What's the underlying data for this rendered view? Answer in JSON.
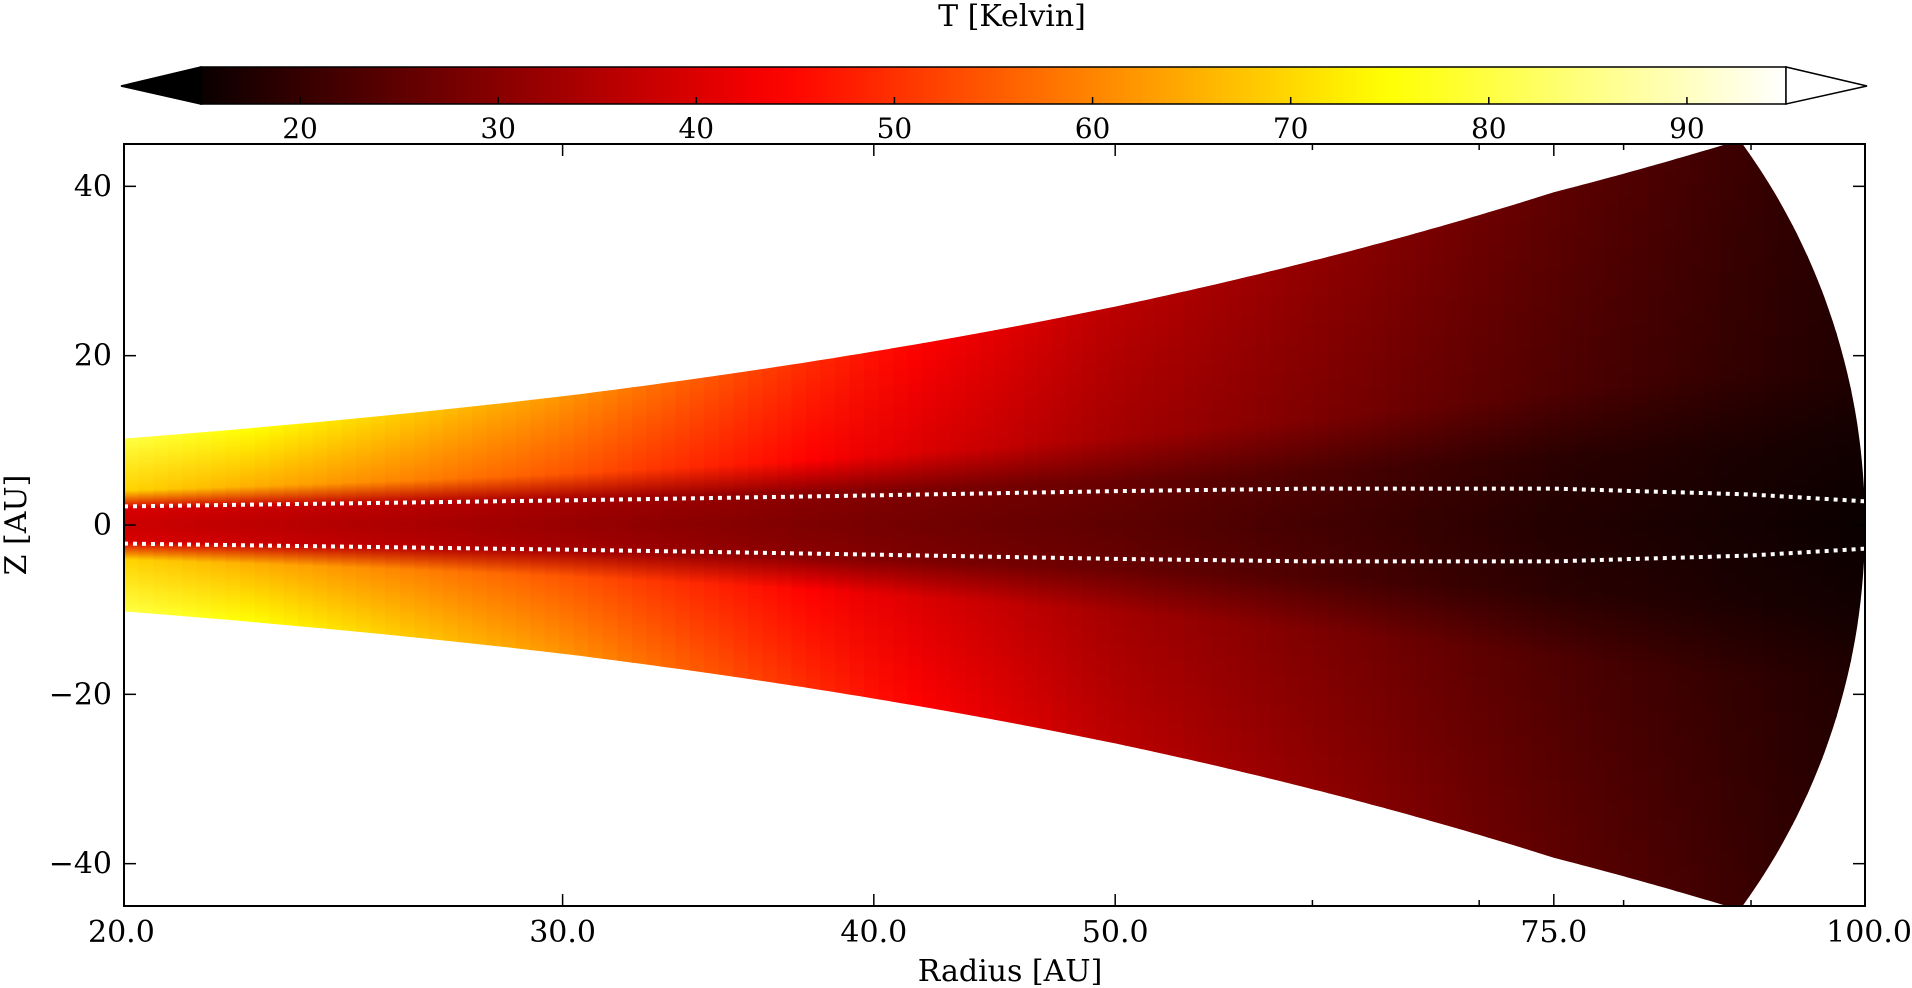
{
  "chart_data": {
    "type": "heatmap",
    "title": "",
    "xlabel": "Radius [AU]",
    "ylabel": "Z [AU]",
    "x_scale": "log",
    "xlim": [
      20,
      100
    ],
    "ylim": [
      -45,
      45
    ],
    "x_ticks": [
      20,
      30,
      40,
      50,
      75,
      100
    ],
    "x_tick_labels": [
      "20.0",
      "30.0",
      "40.0",
      "50.0",
      "75.0",
      "100.0"
    ],
    "y_ticks": [
      -40,
      -20,
      0,
      20,
      40
    ],
    "y_tick_labels": [
      "−40",
      "−20",
      "0",
      "20",
      "40"
    ],
    "grid": false,
    "colorbar": {
      "label": "T [Kelvin]",
      "placement": "top",
      "colormap": "hot",
      "range": [
        15,
        95
      ],
      "extend": "both",
      "ticks": [
        20,
        30,
        40,
        50,
        60,
        70,
        80,
        90
      ],
      "tick_labels": [
        "20",
        "30",
        "40",
        "50",
        "60",
        "70",
        "80",
        "90"
      ]
    },
    "disk": {
      "outer_radius": 100,
      "upper_surface": [
        {
          "r": 20,
          "z": 10.2
        },
        {
          "r": 30,
          "z": 15.2
        },
        {
          "r": 40,
          "z": 20.5
        },
        {
          "r": 50,
          "z": 25.8
        },
        {
          "r": 60,
          "z": 31.2
        },
        {
          "r": 75,
          "z": 39.3
        },
        {
          "r": 88,
          "z": 45
        }
      ],
      "temperature_samples": [
        {
          "r": 20,
          "midplane": 38,
          "surface": 80
        },
        {
          "r": 30,
          "midplane": 32,
          "surface": 62
        },
        {
          "r": 40,
          "midplane": 28,
          "surface": 46
        },
        {
          "r": 50,
          "midplane": 25,
          "surface": 36
        },
        {
          "r": 75,
          "midplane": 18,
          "surface": 25
        },
        {
          "r": 100,
          "midplane": 15,
          "surface": 18
        }
      ]
    },
    "contour": {
      "style": "dotted",
      "color": "#ffffff",
      "upper_line": [
        {
          "r": 20,
          "z": 2.2
        },
        {
          "r": 30,
          "z": 2.9
        },
        {
          "r": 40,
          "z": 3.5
        },
        {
          "r": 50,
          "z": 4.0
        },
        {
          "r": 60,
          "z": 4.3
        },
        {
          "r": 75,
          "z": 4.3
        },
        {
          "r": 90,
          "z": 3.6
        },
        {
          "r": 100,
          "z": 2.8
        }
      ],
      "lower_line": [
        {
          "r": 20,
          "z": -2.2
        },
        {
          "r": 30,
          "z": -2.9
        },
        {
          "r": 40,
          "z": -3.5
        },
        {
          "r": 50,
          "z": -4.0
        },
        {
          "r": 60,
          "z": -4.3
        },
        {
          "r": 75,
          "z": -4.3
        },
        {
          "r": 90,
          "z": -3.6
        },
        {
          "r": 100,
          "z": -2.8
        }
      ]
    }
  }
}
